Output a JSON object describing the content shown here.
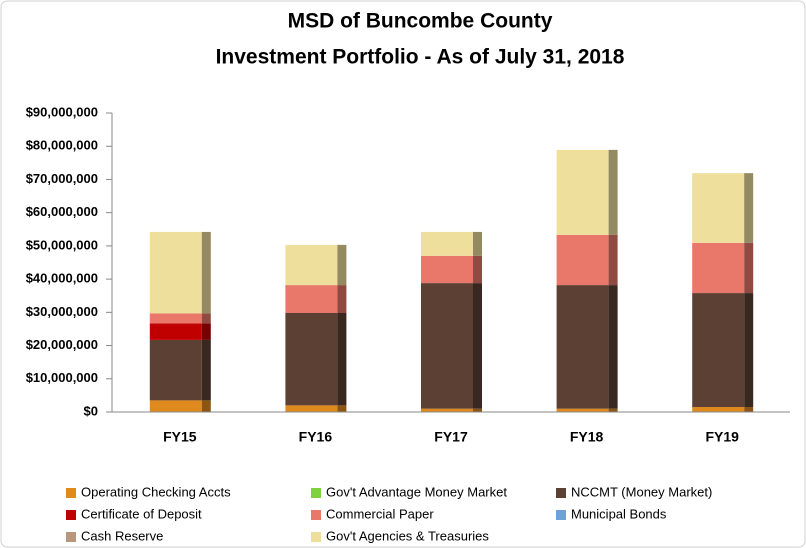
{
  "chart_data": {
    "type": "stacked_bar",
    "title": "MSD of Buncombe County",
    "subtitle": "Investment Portfolio - As of July 31, 2018",
    "categories": [
      "FY15",
      "FY16",
      "FY17",
      "FY18",
      "FY19"
    ],
    "series": [
      {
        "name": "Operating Checking Accts",
        "color": "#e08a1e",
        "values": [
          3500000,
          2000000,
          1000000,
          1000000,
          1500000
        ]
      },
      {
        "name": "Gov't Advantage Money Market",
        "color": "#7fd23c",
        "values": [
          0,
          0,
          0,
          0,
          0
        ]
      },
      {
        "name": "NCCMT (Money Market)",
        "color": "#5c4033",
        "values": [
          18200000,
          27800000,
          37800000,
          37200000,
          34300000
        ]
      },
      {
        "name": "Certificate of Deposit",
        "color": "#c00000",
        "values": [
          5000000,
          0,
          0,
          0,
          0
        ]
      },
      {
        "name": "Commercial  Paper",
        "color": "#e9786a",
        "values": [
          3000000,
          8400000,
          8200000,
          15100000,
          15100000
        ]
      },
      {
        "name": "Municipal Bonds",
        "color": "#6fa0d8",
        "values": [
          0,
          0,
          0,
          0,
          0
        ]
      },
      {
        "name": "Cash  Reserve",
        "color": "#b8977a",
        "values": [
          0,
          0,
          0,
          0,
          0
        ]
      },
      {
        "name": "Gov't Agencies & Treasuries",
        "color": "#efdf9c",
        "values": [
          24500000,
          12100000,
          7200000,
          25600000,
          21000000
        ]
      }
    ],
    "ylim": [
      0,
      90000000
    ],
    "yticks": [
      {
        "value": 0,
        "label": "$0"
      },
      {
        "value": 10000000,
        "label": "$10,000,000"
      },
      {
        "value": 20000000,
        "label": "$20,000,000"
      },
      {
        "value": 30000000,
        "label": "$30,000,000"
      },
      {
        "value": 40000000,
        "label": "$40,000,000"
      },
      {
        "value": 50000000,
        "label": "$50,000,000"
      },
      {
        "value": 60000000,
        "label": "$60,000,000"
      },
      {
        "value": 70000000,
        "label": "$70,000,000"
      },
      {
        "value": 80000000,
        "label": "$80,000,000"
      },
      {
        "value": 90000000,
        "label": "$90,000,000"
      }
    ],
    "grid": false,
    "legend": "bottom"
  }
}
